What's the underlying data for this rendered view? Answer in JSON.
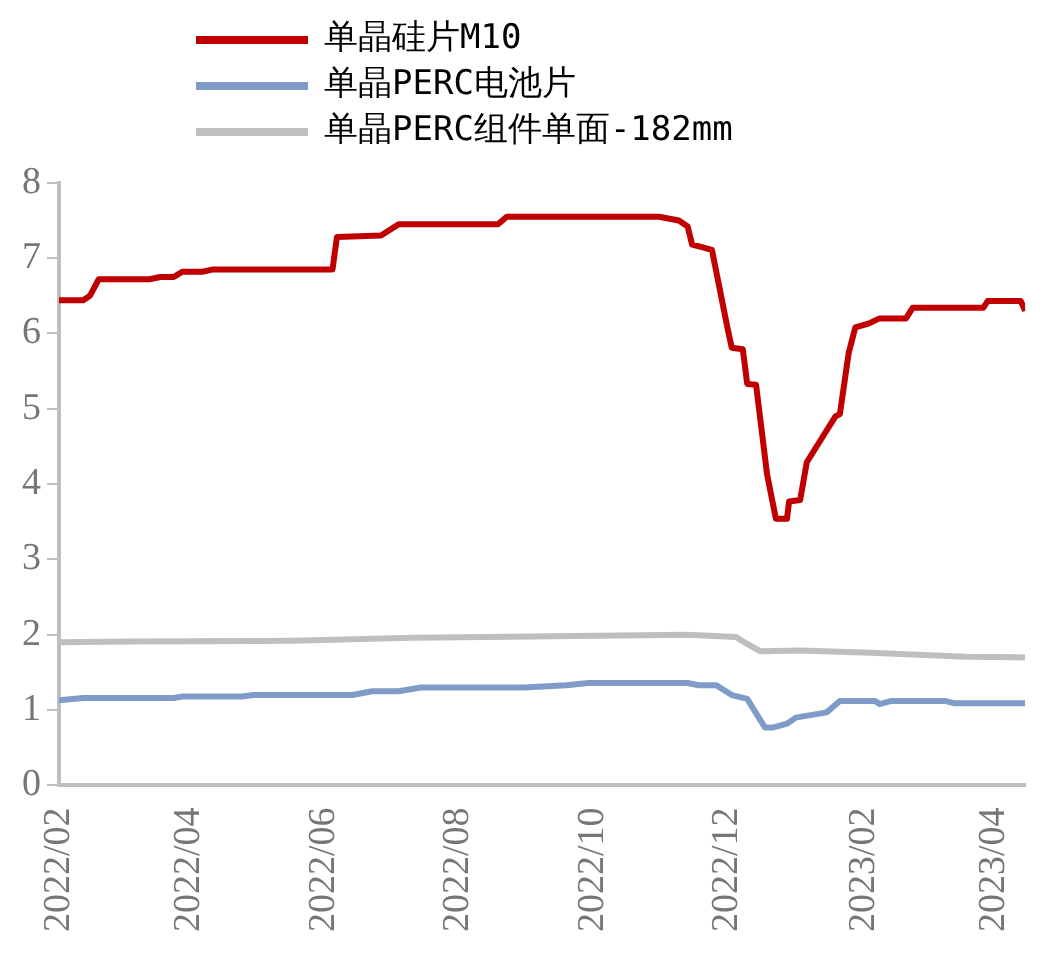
{
  "chart_data": {
    "type": "line",
    "legend": "top",
    "grid": false,
    "marker": "none",
    "line_style": "solid",
    "xlim": [
      "2022-02-01",
      "2023-04-15"
    ],
    "xticks": [
      {
        "value": "2022-02",
        "label": "2022/02"
      },
      {
        "value": "2022-04",
        "label": "2022/04"
      },
      {
        "value": "2022-06",
        "label": "2022/06"
      },
      {
        "value": "2022-08",
        "label": "2022/08"
      },
      {
        "value": "2022-10",
        "label": "2022/10"
      },
      {
        "value": "2022-12",
        "label": "2022/12"
      },
      {
        "value": "2023-02",
        "label": "2023/02"
      },
      {
        "value": "2023-04",
        "label": "2023/04"
      }
    ],
    "ylim": [
      0,
      8
    ],
    "yticks": [
      0,
      1,
      2,
      3,
      4,
      5,
      6,
      7,
      8
    ],
    "series": [
      {
        "name": "单晶硅片M10",
        "color": "#c00000",
        "x": [
          "2022-02-01",
          "2022-02-12",
          "2022-02-15",
          "2022-02-19",
          "2022-03-14",
          "2022-03-19",
          "2022-03-25",
          "2022-03-29",
          "2022-04-07",
          "2022-04-12",
          "2022-06-05",
          "2022-06-07",
          "2022-06-27",
          "2022-07-05",
          "2022-08-19",
          "2022-08-23",
          "2022-10-31",
          "2022-11-09",
          "2022-11-13",
          "2022-11-15",
          "2022-11-19",
          "2022-11-24",
          "2022-12-01",
          "2022-12-03",
          "2022-12-08",
          "2022-12-10",
          "2022-12-14",
          "2022-12-19",
          "2022-12-23",
          "2022-12-28",
          "2022-12-29",
          "2023-01-03",
          "2023-01-06",
          "2023-01-19",
          "2023-01-21",
          "2023-01-25",
          "2023-01-28",
          "2023-02-03",
          "2023-02-08",
          "2023-02-20",
          "2023-02-23",
          "2023-03-27",
          "2023-03-29",
          "2023-04-13",
          "2023-04-15"
        ],
        "values": [
          6.44,
          6.44,
          6.5,
          6.72,
          6.72,
          6.75,
          6.75,
          6.82,
          6.82,
          6.85,
          6.85,
          7.28,
          7.3,
          7.45,
          7.45,
          7.55,
          7.55,
          7.5,
          7.42,
          7.18,
          7.15,
          7.11,
          6.08,
          5.81,
          5.79,
          5.33,
          5.32,
          4.13,
          3.54,
          3.54,
          3.77,
          3.79,
          4.29,
          4.9,
          4.93,
          5.74,
          6.08,
          6.13,
          6.2,
          6.2,
          6.34,
          6.34,
          6.43,
          6.43,
          6.3
        ]
      },
      {
        "name": "单晶PERC电池片",
        "color": "#7f9cc9",
        "x": [
          "2022-02-01",
          "2022-02-12",
          "2022-03-25",
          "2022-03-29",
          "2022-04-25",
          "2022-04-30",
          "2022-06-14",
          "2022-06-23",
          "2022-07-05",
          "2022-07-15",
          "2022-08-31",
          "2022-09-19",
          "2022-09-29",
          "2022-11-13",
          "2022-11-18",
          "2022-11-26",
          "2022-12-03",
          "2022-12-10",
          "2022-12-18",
          "2022-12-22",
          "2022-12-28",
          "2023-01-01",
          "2023-01-15",
          "2023-01-21",
          "2023-02-06",
          "2023-02-08",
          "2023-02-13",
          "2023-03-10",
          "2023-03-14",
          "2023-04-15"
        ],
        "values": [
          1.13,
          1.16,
          1.16,
          1.18,
          1.18,
          1.2,
          1.2,
          1.25,
          1.25,
          1.3,
          1.3,
          1.33,
          1.36,
          1.36,
          1.33,
          1.33,
          1.2,
          1.15,
          0.77,
          0.77,
          0.82,
          0.9,
          0.97,
          1.12,
          1.12,
          1.08,
          1.12,
          1.12,
          1.09,
          1.09
        ]
      },
      {
        "name": "单晶PERC组件单面-182mm",
        "color": "#bfbfbf",
        "x": [
          "2022-02-01",
          "2022-03-05",
          "2022-05-18",
          "2022-07-11",
          "2022-11-13",
          "2022-12-05",
          "2022-12-07",
          "2022-12-16",
          "2023-01-03",
          "2023-02-04",
          "2023-03-19",
          "2023-04-15"
        ],
        "values": [
          1.9,
          1.91,
          1.92,
          1.96,
          2.0,
          1.97,
          1.93,
          1.78,
          1.79,
          1.76,
          1.71,
          1.7
        ]
      }
    ]
  }
}
